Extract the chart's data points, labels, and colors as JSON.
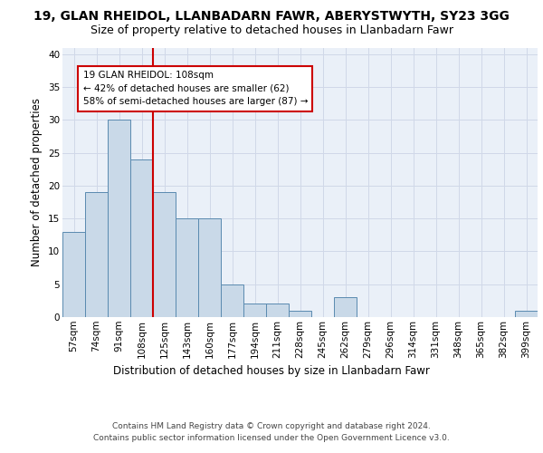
{
  "title_line1": "19, GLAN RHEIDOL, LLANBADARN FAWR, ABERYSTWYTH, SY23 3GG",
  "title_line2": "Size of property relative to detached houses in Llanbadarn Fawr",
  "xlabel": "Distribution of detached houses by size in Llanbadarn Fawr",
  "ylabel": "Number of detached properties",
  "categories": [
    "57sqm",
    "74sqm",
    "91sqm",
    "108sqm",
    "125sqm",
    "143sqm",
    "160sqm",
    "177sqm",
    "194sqm",
    "211sqm",
    "228sqm",
    "245sqm",
    "262sqm",
    "279sqm",
    "296sqm",
    "314sqm",
    "331sqm",
    "348sqm",
    "365sqm",
    "382sqm",
    "399sqm"
  ],
  "values": [
    13,
    19,
    30,
    24,
    19,
    15,
    15,
    5,
    2,
    2,
    1,
    0,
    3,
    0,
    0,
    0,
    0,
    0,
    0,
    0,
    1
  ],
  "bar_color": "#c9d9e8",
  "bar_edge_color": "#5a8ab0",
  "red_line_index": 3,
  "annotation_text": "19 GLAN RHEIDOL: 108sqm\n← 42% of detached houses are smaller (62)\n58% of semi-detached houses are larger (87) →",
  "annotation_box_color": "#ffffff",
  "annotation_box_edge_color": "#cc0000",
  "ylim": [
    0,
    41
  ],
  "yticks": [
    0,
    5,
    10,
    15,
    20,
    25,
    30,
    35,
    40
  ],
  "footer_line1": "Contains HM Land Registry data © Crown copyright and database right 2024.",
  "footer_line2": "Contains public sector information licensed under the Open Government Licence v3.0.",
  "title_fontsize": 10,
  "subtitle_fontsize": 9,
  "axis_label_fontsize": 8.5,
  "tick_fontsize": 7.5,
  "annotation_fontsize": 7.5,
  "footer_fontsize": 6.5,
  "grid_color": "#d0d8e8",
  "background_color": "#eaf0f8"
}
